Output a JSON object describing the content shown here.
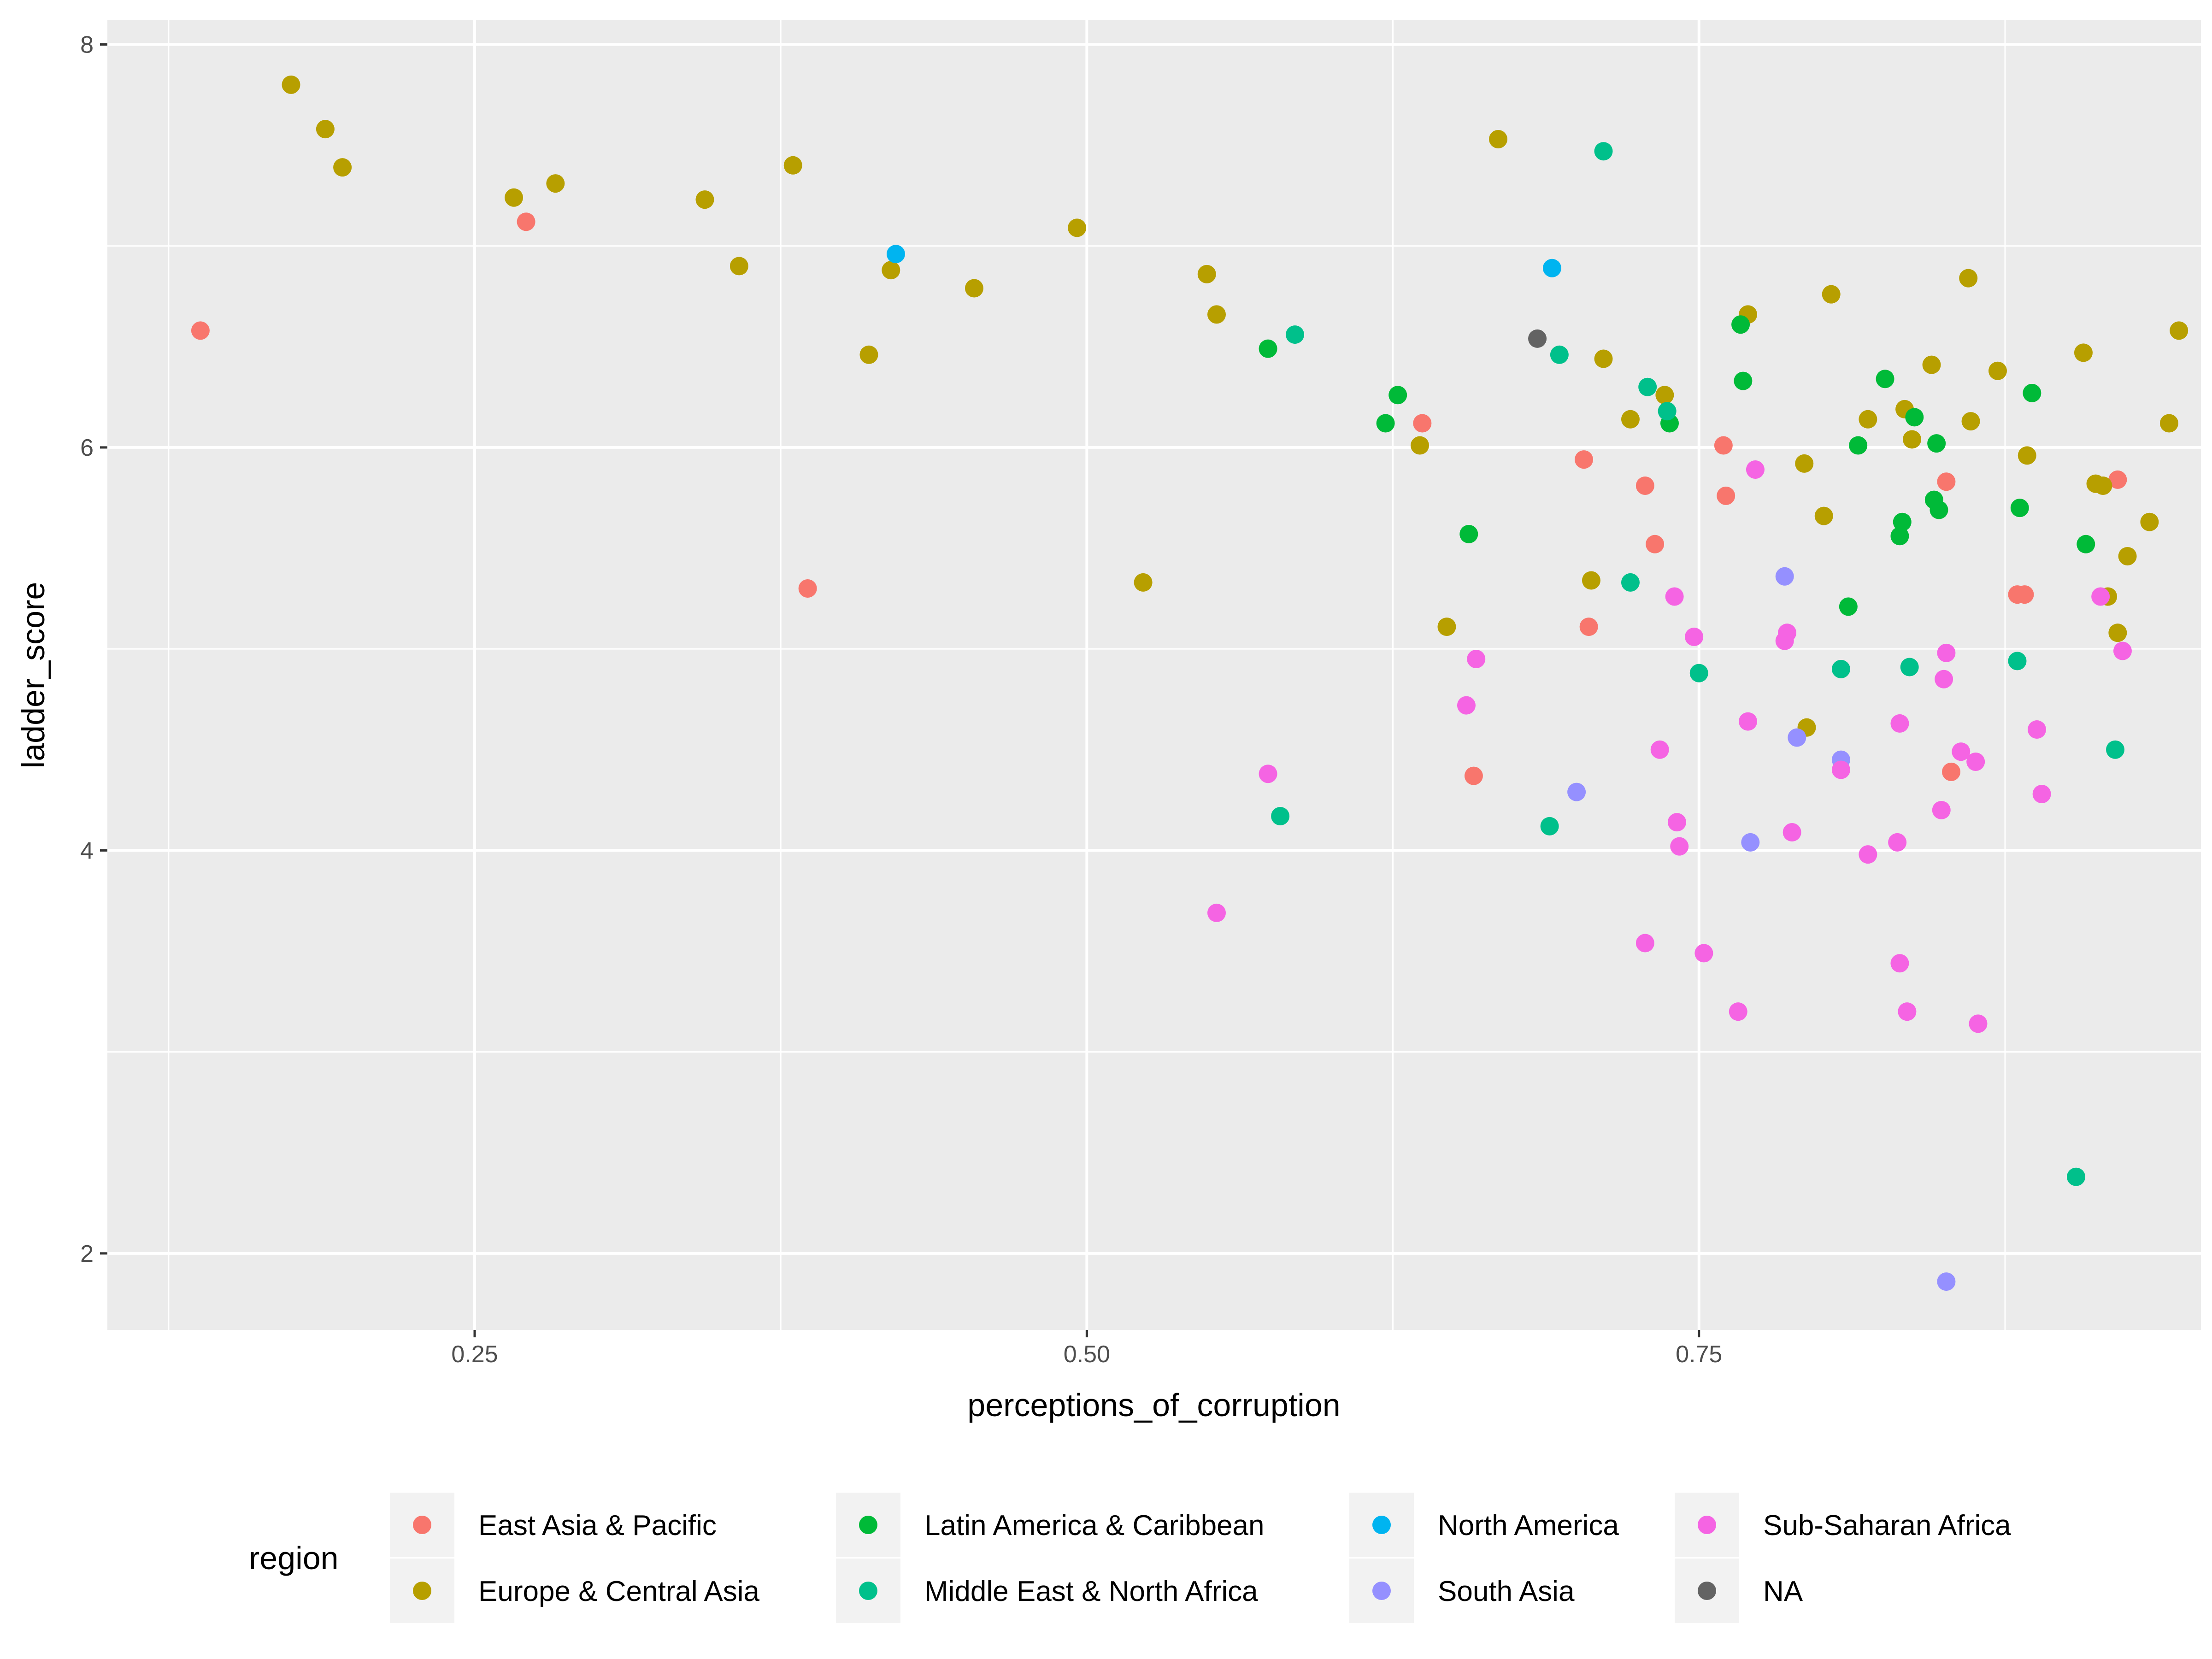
{
  "chart_data": {
    "type": "scatter",
    "xlabel": "perceptions_of_corruption",
    "ylabel": "ladder_score",
    "xlim": [
      0.1,
      0.955
    ],
    "ylim": [
      1.62,
      8.12
    ],
    "x_ticks": [
      0.25,
      0.5,
      0.75
    ],
    "x_tick_labels": [
      "0.25",
      "0.50",
      "0.75"
    ],
    "y_ticks": [
      2,
      4,
      6,
      8
    ],
    "y_tick_labels": [
      "2",
      "4",
      "6",
      "8"
    ],
    "grid": true,
    "legend": {
      "title": "region",
      "placement": "bottom"
    },
    "series": [
      {
        "name": "East Asia & Pacific",
        "color": "#F8766D",
        "points": [
          [
            0.138,
            6.58
          ],
          [
            0.271,
            7.12
          ],
          [
            0.386,
            5.3
          ],
          [
            0.637,
            6.12
          ],
          [
            0.658,
            4.37
          ],
          [
            0.703,
            5.94
          ],
          [
            0.705,
            5.11
          ],
          [
            0.728,
            5.81
          ],
          [
            0.732,
            5.52
          ],
          [
            0.76,
            6.01
          ],
          [
            0.761,
            5.76
          ],
          [
            0.853,
            4.39
          ],
          [
            0.88,
            5.27
          ],
          [
            0.883,
            5.27
          ],
          [
            0.921,
            5.84
          ],
          [
            0.851,
            5.83
          ]
        ]
      },
      {
        "name": "Europe & Central Asia",
        "color": "#B79F00",
        "points": [
          [
            0.175,
            7.8
          ],
          [
            0.189,
            7.58
          ],
          [
            0.196,
            7.39
          ],
          [
            0.266,
            7.24
          ],
          [
            0.283,
            7.31
          ],
          [
            0.344,
            7.23
          ],
          [
            0.358,
            6.9
          ],
          [
            0.38,
            7.4
          ],
          [
            0.411,
            6.46
          ],
          [
            0.42,
            6.88
          ],
          [
            0.454,
            6.79
          ],
          [
            0.496,
            7.09
          ],
          [
            0.523,
            5.33
          ],
          [
            0.549,
            6.86
          ],
          [
            0.553,
            6.66
          ],
          [
            0.636,
            6.01
          ],
          [
            0.647,
            5.11
          ],
          [
            0.668,
            7.53
          ],
          [
            0.706,
            5.34
          ],
          [
            0.711,
            6.44
          ],
          [
            0.722,
            6.14
          ],
          [
            0.736,
            6.26
          ],
          [
            0.77,
            6.66
          ],
          [
            0.793,
            5.92
          ],
          [
            0.794,
            4.61
          ],
          [
            0.801,
            5.66
          ],
          [
            0.804,
            6.76
          ],
          [
            0.819,
            6.14
          ],
          [
            0.834,
            6.19
          ],
          [
            0.837,
            6.04
          ],
          [
            0.845,
            6.41
          ],
          [
            0.86,
            6.84
          ],
          [
            0.861,
            6.13
          ],
          [
            0.872,
            6.38
          ],
          [
            0.884,
            5.96
          ],
          [
            0.907,
            6.47
          ],
          [
            0.912,
            5.82
          ],
          [
            0.915,
            5.81
          ],
          [
            0.917,
            5.26
          ],
          [
            0.921,
            5.08
          ],
          [
            0.925,
            5.46
          ],
          [
            0.934,
            5.63
          ],
          [
            0.942,
            6.12
          ],
          [
            0.946,
            6.58
          ]
        ]
      },
      {
        "name": "Latin America & Caribbean",
        "color": "#00BA38",
        "points": [
          [
            0.574,
            6.49
          ],
          [
            0.622,
            6.12
          ],
          [
            0.627,
            6.26
          ],
          [
            0.656,
            5.57
          ],
          [
            0.738,
            6.12
          ],
          [
            0.767,
            6.61
          ],
          [
            0.768,
            6.33
          ],
          [
            0.811,
            5.21
          ],
          [
            0.815,
            6.01
          ],
          [
            0.826,
            6.34
          ],
          [
            0.832,
            5.56
          ],
          [
            0.833,
            5.63
          ],
          [
            0.838,
            6.15
          ],
          [
            0.846,
            5.74
          ],
          [
            0.847,
            6.02
          ],
          [
            0.848,
            5.69
          ],
          [
            0.881,
            5.7
          ],
          [
            0.886,
            6.27
          ],
          [
            0.908,
            5.52
          ]
        ]
      },
      {
        "name": "Middle East & North Africa",
        "color": "#00C08B",
        "points": [
          [
            0.579,
            4.17
          ],
          [
            0.585,
            6.56
          ],
          [
            0.689,
            4.12
          ],
          [
            0.693,
            6.46
          ],
          [
            0.711,
            7.47
          ],
          [
            0.722,
            5.33
          ],
          [
            0.729,
            6.3
          ],
          [
            0.737,
            6.18
          ],
          [
            0.75,
            4.88
          ],
          [
            0.808,
            4.9
          ],
          [
            0.836,
            4.91
          ],
          [
            0.88,
            4.94
          ],
          [
            0.904,
            2.38
          ],
          [
            0.92,
            4.5
          ]
        ]
      },
      {
        "name": "North America",
        "color": "#00B4F0",
        "points": [
          [
            0.422,
            6.96
          ],
          [
            0.69,
            6.89
          ]
        ]
      },
      {
        "name": "South Asia",
        "color": "#9590FF",
        "points": [
          [
            0.7,
            4.29
          ],
          [
            0.771,
            4.04
          ],
          [
            0.785,
            5.36
          ],
          [
            0.79,
            4.56
          ],
          [
            0.808,
            4.45
          ],
          [
            0.851,
            1.86
          ]
        ]
      },
      {
        "name": "Sub-Saharan Africa",
        "color": "#F564E3",
        "points": [
          [
            0.553,
            3.69
          ],
          [
            0.574,
            4.38
          ],
          [
            0.655,
            4.72
          ],
          [
            0.659,
            4.95
          ],
          [
            0.728,
            3.54
          ],
          [
            0.734,
            4.5
          ],
          [
            0.74,
            5.26
          ],
          [
            0.741,
            4.14
          ],
          [
            0.742,
            4.02
          ],
          [
            0.748,
            5.06
          ],
          [
            0.752,
            3.49
          ],
          [
            0.766,
            3.2
          ],
          [
            0.77,
            4.64
          ],
          [
            0.773,
            5.89
          ],
          [
            0.785,
            5.04
          ],
          [
            0.786,
            5.08
          ],
          [
            0.788,
            4.09
          ],
          [
            0.808,
            4.4
          ],
          [
            0.819,
            3.98
          ],
          [
            0.831,
            4.04
          ],
          [
            0.832,
            4.63
          ],
          [
            0.832,
            3.44
          ],
          [
            0.835,
            3.2
          ],
          [
            0.849,
            4.2
          ],
          [
            0.85,
            4.85
          ],
          [
            0.851,
            4.98
          ],
          [
            0.857,
            4.49
          ],
          [
            0.863,
            4.44
          ],
          [
            0.864,
            3.14
          ],
          [
            0.888,
            4.6
          ],
          [
            0.89,
            4.28
          ],
          [
            0.914,
            5.26
          ],
          [
            0.923,
            4.99
          ]
        ]
      },
      {
        "name": "NA",
        "color": "#636363",
        "points": [
          [
            0.684,
            6.54
          ]
        ]
      }
    ]
  }
}
